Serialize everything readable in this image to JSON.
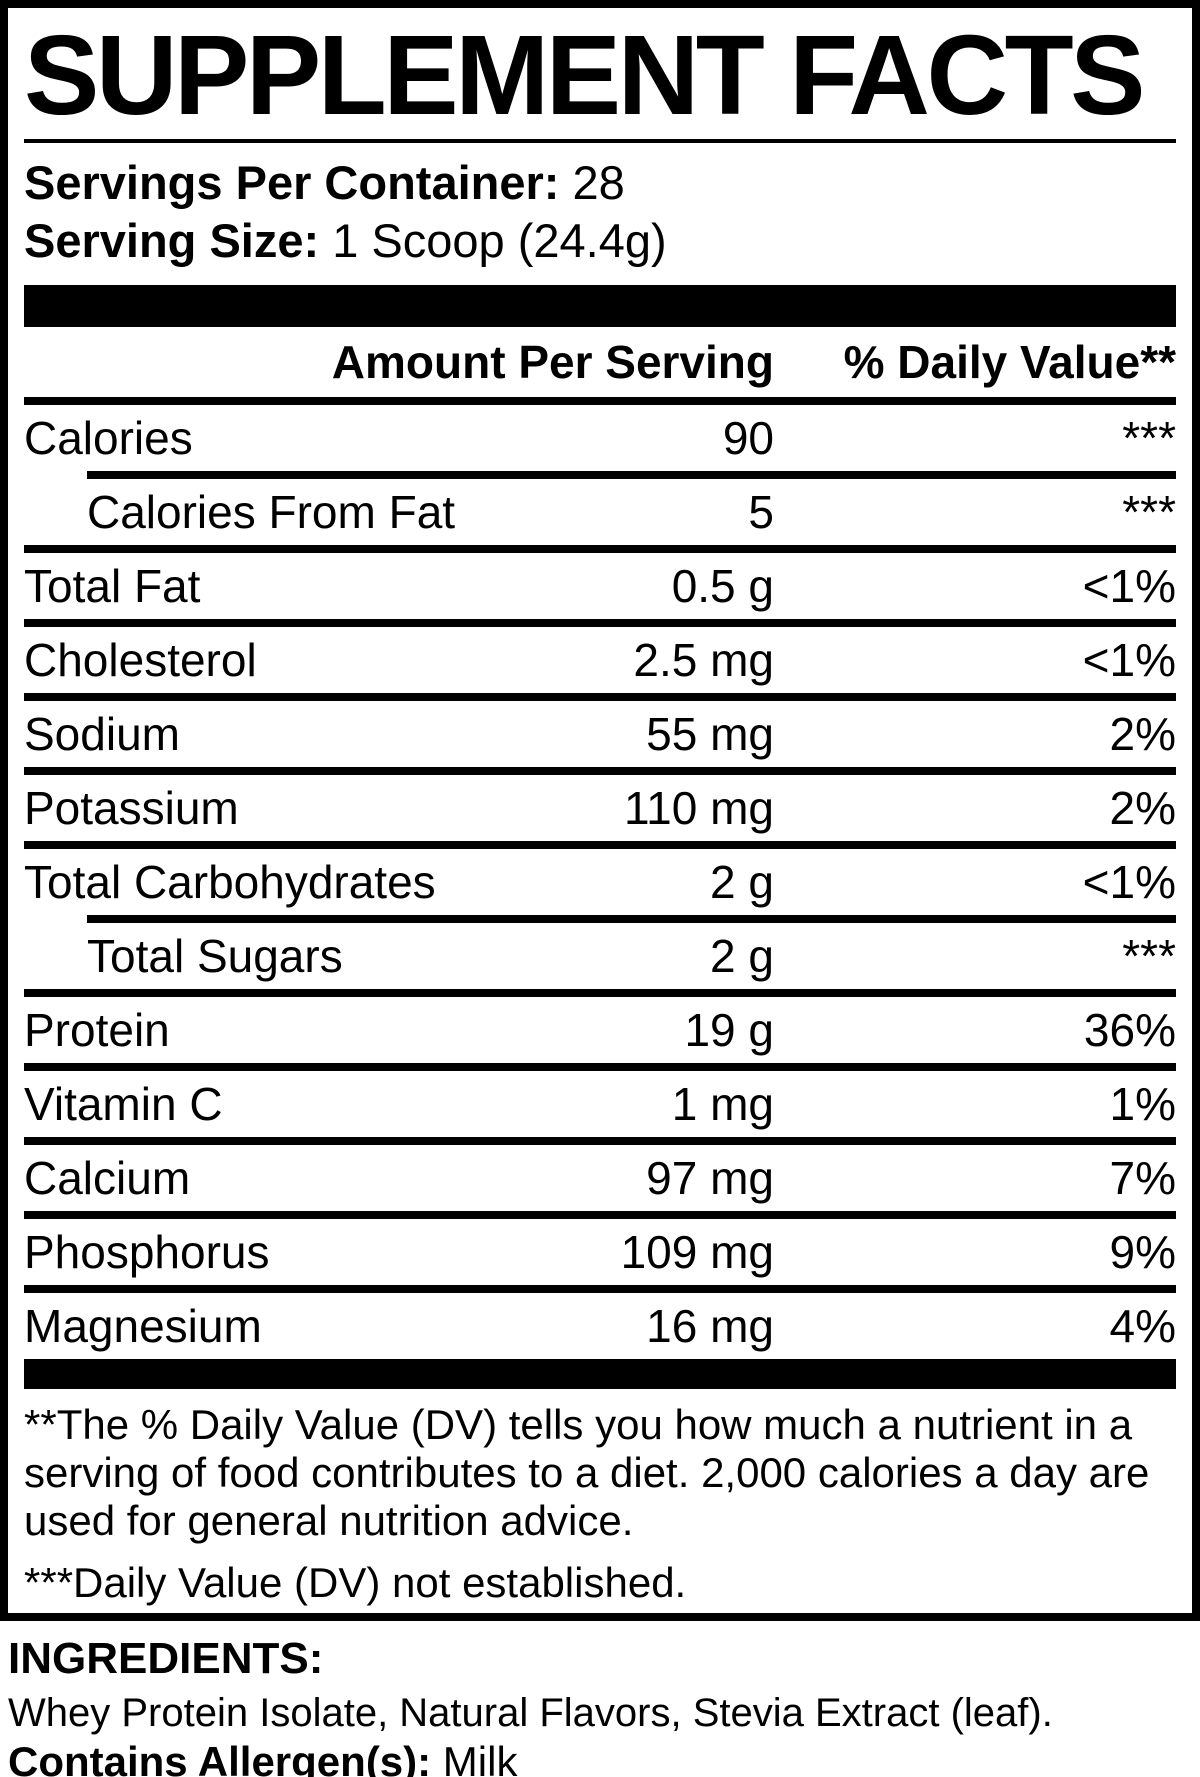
{
  "title": "SUPPLEMENT FACTS",
  "serving_info": {
    "servings_label": "Servings Per Container:",
    "servings_value": " 28",
    "size_label": "Serving Size:",
    "size_value": " 1 Scoop (24.4g)"
  },
  "table": {
    "amount_header": "Amount Per Serving",
    "dv_header": "% Daily Value**",
    "rows": [
      {
        "name": "Calories",
        "amount": "90",
        "dv": "***",
        "indent": false,
        "rule_below": "indent"
      },
      {
        "name": "Calories From Fat",
        "amount": "5",
        "dv": "***",
        "indent": true,
        "rule_below": "full"
      },
      {
        "name": "Total Fat",
        "amount": "0.5 g",
        "dv": "<1%",
        "indent": false,
        "rule_below": "full"
      },
      {
        "name": "Cholesterol",
        "amount": "2.5 mg",
        "dv": "<1%",
        "indent": false,
        "rule_below": "full"
      },
      {
        "name": "Sodium",
        "amount": "55 mg",
        "dv": "2%",
        "indent": false,
        "rule_below": "full"
      },
      {
        "name": "Potassium",
        "amount": "110 mg",
        "dv": "2%",
        "indent": false,
        "rule_below": "full"
      },
      {
        "name": "Total Carbohydrates",
        "amount": "2 g",
        "dv": "<1%",
        "indent": false,
        "rule_below": "indent"
      },
      {
        "name": "Total Sugars",
        "amount": "2 g",
        "dv": "***",
        "indent": true,
        "rule_below": "full"
      },
      {
        "name": "Protein",
        "amount": "19 g",
        "dv": "36%",
        "indent": false,
        "rule_below": "full"
      },
      {
        "name": "Vitamin C",
        "amount": "1 mg",
        "dv": "1%",
        "indent": false,
        "rule_below": "full"
      },
      {
        "name": "Calcium",
        "amount": "97 mg",
        "dv": "7%",
        "indent": false,
        "rule_below": "full"
      },
      {
        "name": "Phosphorus",
        "amount": "109 mg",
        "dv": "9%",
        "indent": false,
        "rule_below": "full"
      },
      {
        "name": "Magnesium",
        "amount": "16 mg",
        "dv": "4%",
        "indent": false,
        "rule_below": "none"
      }
    ]
  },
  "footnote": {
    "lines": [
      "**The % Daily Value (DV) tells you how much a nutrient in a",
      "serving of food contributes to a diet. 2,000 calories a day are",
      "used for general nutrition advice.",
      "***Daily Value (DV) not established."
    ]
  },
  "ingredients": {
    "heading": "INGREDIENTS:",
    "list": "Whey Protein Isolate, Natural Flavors, Stevia Extract (leaf).",
    "allergen_label": "Contains Allergen(s):",
    "allergen_value": " Milk"
  },
  "colors": {
    "text": "#000000",
    "background": "#ffffff"
  }
}
